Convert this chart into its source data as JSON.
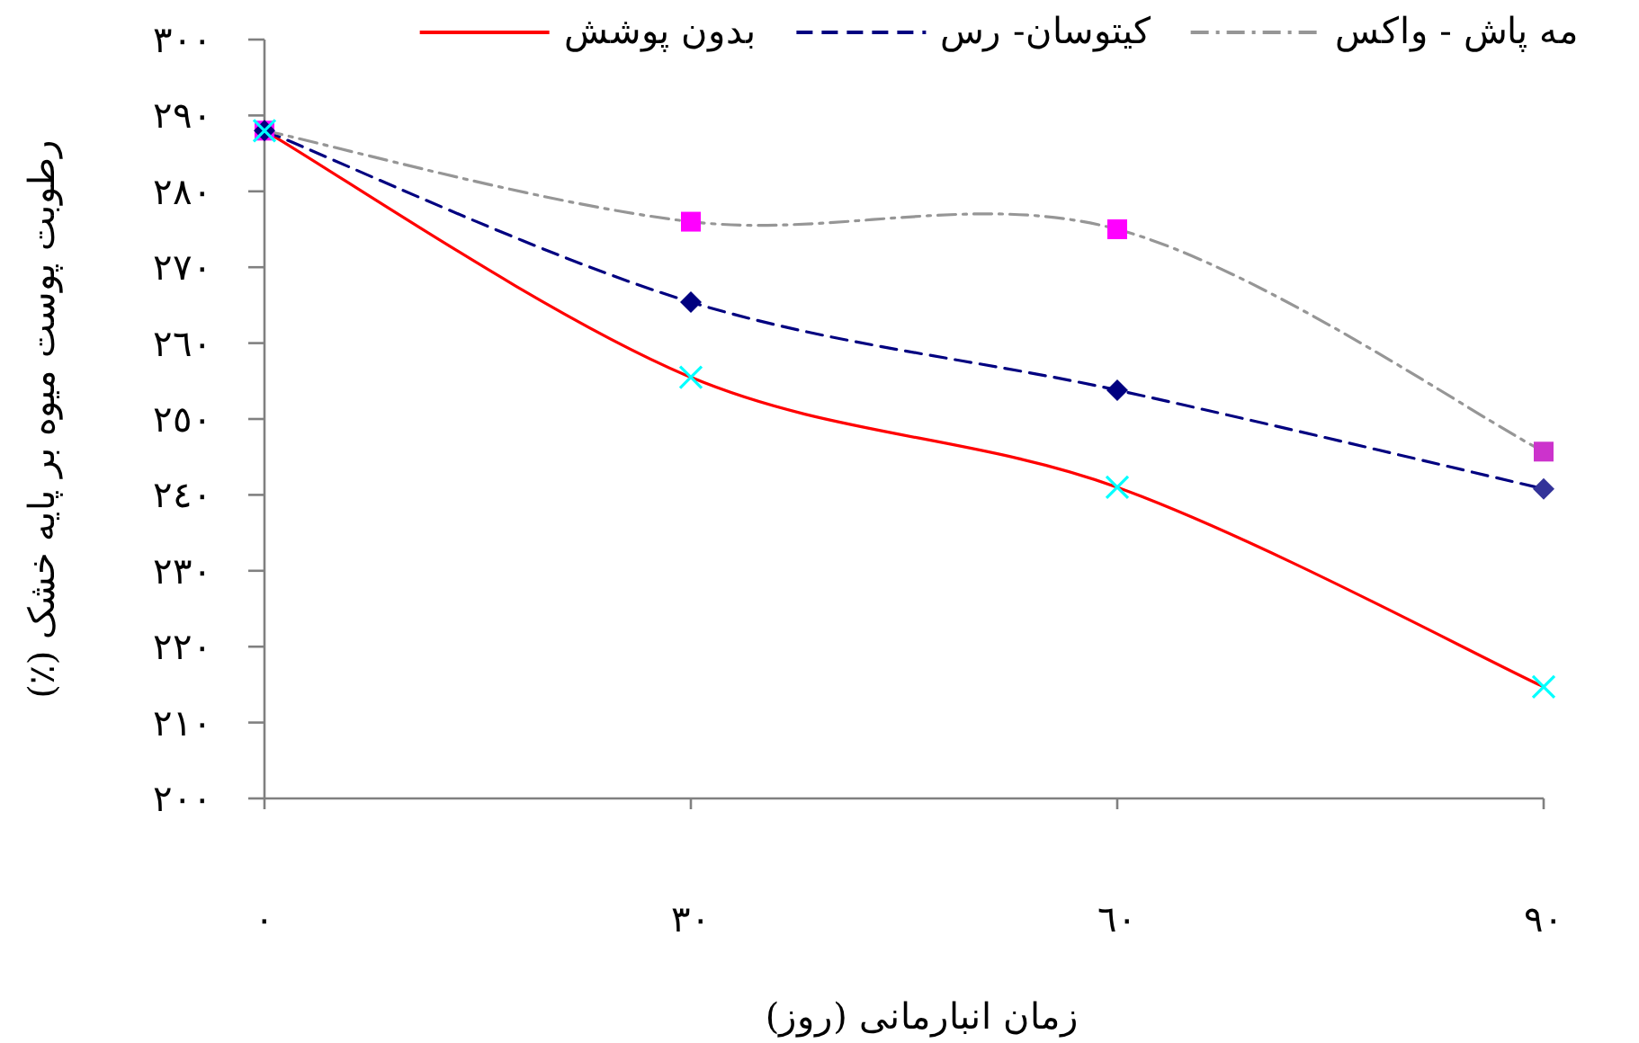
{
  "chart_data": {
    "type": "line",
    "ylabel": "رطوبت پوست میوه بر پایه خشک (٪)",
    "xlabel": "زمان انبارمانی (روز)",
    "x": [
      0,
      30,
      60,
      90
    ],
    "xlim": [
      0,
      90
    ],
    "xticks": [
      {
        "value": 0,
        "label": "٠"
      },
      {
        "value": 30,
        "label": "٣٠"
      },
      {
        "value": 60,
        "label": "٦٠"
      },
      {
        "value": 90,
        "label": "٩٠"
      }
    ],
    "ylim": [
      200,
      300
    ],
    "yticks": [
      {
        "value": 200,
        "label": "٢٠٠"
      },
      {
        "value": 210,
        "label": "٢١٠"
      },
      {
        "value": 220,
        "label": "٢٢٠"
      },
      {
        "value": 230,
        "label": "٢٣٠"
      },
      {
        "value": 240,
        "label": "٢٤٠"
      },
      {
        "value": 250,
        "label": "٢٥٠"
      },
      {
        "value": 260,
        "label": "٢٦٠"
      },
      {
        "value": 270,
        "label": "٢٧٠"
      },
      {
        "value": 280,
        "label": "٢٨٠"
      },
      {
        "value": 290,
        "label": "٢٩٠"
      },
      {
        "value": 300,
        "label": "٣٠٠"
      }
    ],
    "grid": false,
    "legend": "top",
    "series": [
      {
        "name": "بدون پوشش",
        "color": "#ff0000",
        "line_style": "solid",
        "marker": "cross",
        "colors": [
          "#00ffff",
          "#00ffff",
          "#00ffff",
          "#00ffff"
        ],
        "values": [
          288,
          255.5,
          241,
          214.7
        ]
      },
      {
        "name": "کیتوسان- رس",
        "color": "#000080",
        "line_style": "dashed",
        "marker": "diamond",
        "colors": [
          "#000080",
          "#000080",
          "#000080",
          "#333399"
        ],
        "values": [
          288,
          265.4,
          253.8,
          240.8
        ]
      },
      {
        "name": "مه پاش - واکس",
        "color": "#969696",
        "line_style": "dashdot",
        "marker": "square",
        "colors": [
          "#ff00ff",
          "#ff00ff",
          "#ff00ff",
          "#cc33cc"
        ],
        "values": [
          288,
          276,
          275,
          245.7
        ]
      }
    ]
  }
}
